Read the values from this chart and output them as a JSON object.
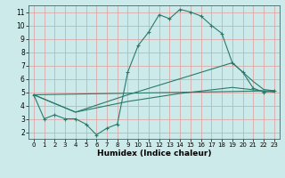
{
  "title": "",
  "xlabel": "Humidex (Indice chaleur)",
  "ylabel": "",
  "bg_color": "#cceaea",
  "line_color": "#2a7a6a",
  "grid_color": "#dda8a8",
  "xlim": [
    -0.5,
    23.5
  ],
  "ylim": [
    1.5,
    11.5
  ],
  "xticks": [
    0,
    1,
    2,
    3,
    4,
    5,
    6,
    7,
    8,
    9,
    10,
    11,
    12,
    13,
    14,
    15,
    16,
    17,
    18,
    19,
    20,
    21,
    22,
    23
  ],
  "yticks": [
    2,
    3,
    4,
    5,
    6,
    7,
    8,
    9,
    10,
    11
  ],
  "line1_x": [
    0,
    1,
    2,
    3,
    4,
    5,
    6,
    7,
    8,
    9,
    10,
    11,
    12,
    13,
    14,
    15,
    16,
    17,
    18,
    19,
    20,
    21,
    22,
    23
  ],
  "line1_y": [
    4.8,
    3.0,
    3.3,
    3.0,
    3.0,
    2.6,
    1.8,
    2.3,
    2.6,
    6.5,
    8.5,
    9.5,
    10.8,
    10.5,
    11.2,
    11.0,
    10.7,
    10.0,
    9.4,
    7.2,
    6.5,
    5.3,
    5.0,
    5.1
  ],
  "line2_x": [
    0,
    23
  ],
  "line2_y": [
    4.8,
    5.1
  ],
  "line3_x": [
    0,
    4,
    9,
    14,
    19,
    23
  ],
  "line3_y": [
    4.8,
    3.5,
    4.3,
    4.9,
    5.35,
    5.0
  ],
  "line4_x": [
    0,
    4,
    9,
    14,
    19,
    20,
    21,
    22,
    23
  ],
  "line4_y": [
    4.8,
    3.5,
    4.8,
    6.0,
    7.2,
    6.5,
    5.8,
    5.2,
    5.1
  ]
}
